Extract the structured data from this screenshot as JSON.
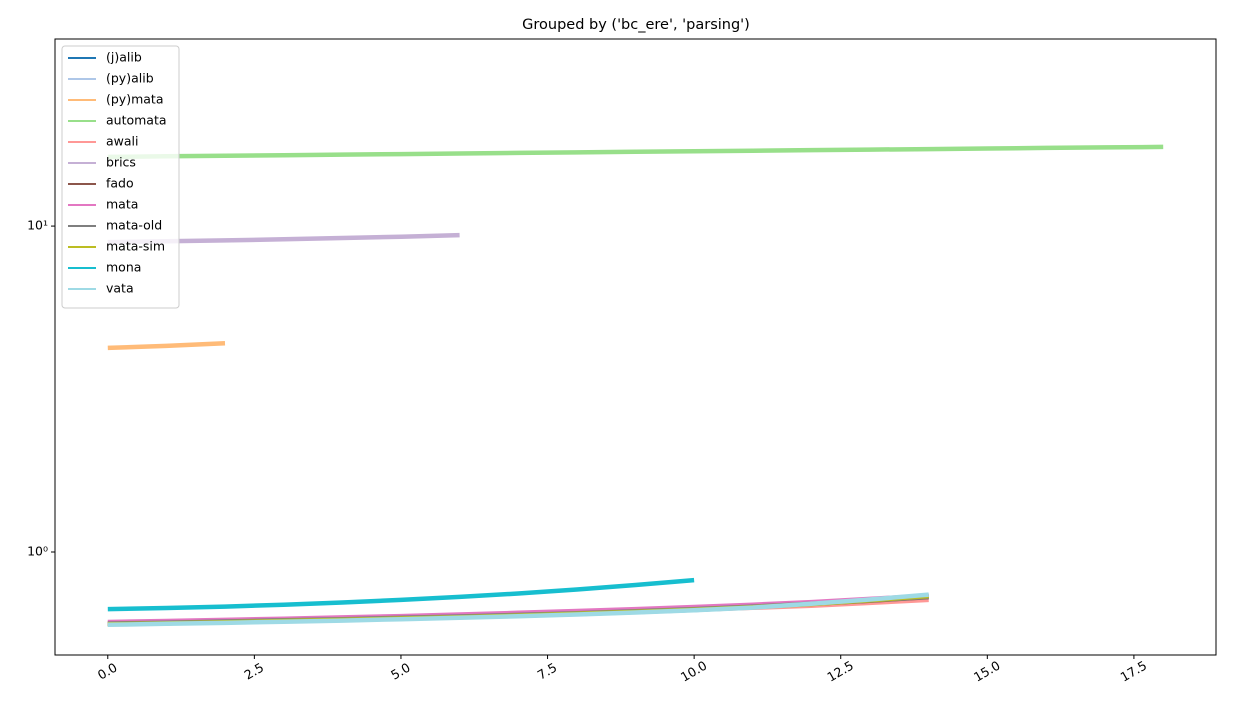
{
  "chart_data": {
    "type": "line",
    "title": "Grouped by ('bc_ere', 'parsing')",
    "xlim": [
      -0.9,
      18.9
    ],
    "ylim": [
      0.483,
      37.5
    ],
    "yscale": "log",
    "xticks": [
      {
        "value": 0,
        "label": "0.0"
      },
      2.5,
      {
        "value": 5,
        "label": "5.0"
      },
      7.5,
      {
        "value": 10,
        "label": "10.0"
      },
      12.5,
      {
        "value": 15,
        "label": "15.0"
      },
      17.5
    ],
    "yticks": [
      {
        "value": 1,
        "label": "10⁰"
      },
      {
        "value": 10,
        "label": "10¹"
      }
    ],
    "legend": "upper left",
    "series": [
      {
        "name": "(j)alib",
        "color": "#1f77b4",
        "x": [
          0,
          1,
          2,
          3,
          4,
          5,
          6,
          7,
          8,
          9,
          10,
          11,
          12,
          13,
          14
        ],
        "values": [
          0.6,
          0.604,
          0.608,
          0.613,
          0.618,
          0.624,
          0.63,
          0.637,
          0.645,
          0.654,
          0.664,
          0.676,
          0.692,
          0.712,
          0.735
        ]
      },
      {
        "name": "(py)alib",
        "color": "#aec7e8",
        "x": [
          0,
          1,
          2,
          3,
          4,
          5,
          6,
          7,
          8,
          9,
          10,
          11,
          12,
          13,
          14
        ],
        "values": [
          0.601,
          0.605,
          0.609,
          0.614,
          0.619,
          0.625,
          0.631,
          0.638,
          0.646,
          0.655,
          0.665,
          0.677,
          0.693,
          0.713,
          0.736
        ]
      },
      {
        "name": "(py)mata",
        "color": "#ffbb78",
        "x": [
          0,
          1,
          2
        ],
        "values": [
          4.23,
          4.29,
          4.37
        ]
      },
      {
        "name": "automata",
        "color": "#98df8a",
        "x": [
          0,
          1,
          2,
          3,
          4,
          5,
          6,
          7,
          8,
          9,
          10,
          11,
          12,
          13,
          14,
          15,
          16,
          17,
          18
        ],
        "values": [
          16.3,
          16.37,
          16.43,
          16.5,
          16.57,
          16.63,
          16.7,
          16.77,
          16.83,
          16.9,
          16.97,
          17.03,
          17.1,
          17.17,
          17.23,
          17.3,
          17.37,
          17.43,
          17.5
        ]
      },
      {
        "name": "awali",
        "color": "#ff9896",
        "x": [
          0,
          1,
          2,
          3,
          4,
          5,
          6,
          7,
          8,
          9,
          10,
          11,
          12,
          13,
          14
        ],
        "values": [
          0.605,
          0.609,
          0.613,
          0.618,
          0.623,
          0.629,
          0.635,
          0.642,
          0.649,
          0.657,
          0.665,
          0.674,
          0.684,
          0.698,
          0.713
        ]
      },
      {
        "name": "brics",
        "color": "#c5b0d5",
        "x": [
          0,
          1,
          2,
          3,
          4,
          5,
          6
        ],
        "values": [
          8.93,
          8.98,
          9.04,
          9.11,
          9.19,
          9.28,
          9.38
        ]
      },
      {
        "name": "fado",
        "color": "#8c564b",
        "x": [
          0,
          1,
          2,
          3,
          4,
          5,
          6,
          7,
          8,
          9,
          10,
          11,
          12,
          13,
          14
        ],
        "values": [
          0.602,
          0.606,
          0.611,
          0.616,
          0.621,
          0.627,
          0.633,
          0.64,
          0.648,
          0.657,
          0.667,
          0.679,
          0.693,
          0.709,
          0.727
        ]
      },
      {
        "name": "mata",
        "color": "#e377c2",
        "x": [
          0,
          1,
          2,
          3,
          4,
          5,
          6,
          7,
          8,
          9,
          10,
          11,
          12,
          13,
          14
        ],
        "values": [
          0.61,
          0.614,
          0.619,
          0.624,
          0.63,
          0.636,
          0.643,
          0.651,
          0.659,
          0.668,
          0.678,
          0.689,
          0.702,
          0.718,
          0.735
        ]
      },
      {
        "name": "mata-old",
        "color": "#7f7f7f",
        "x": [
          0,
          1,
          2,
          3,
          4,
          5,
          6,
          7,
          8,
          9,
          10,
          11,
          12,
          13,
          14
        ],
        "values": [
          0.603,
          0.607,
          0.612,
          0.617,
          0.622,
          0.628,
          0.634,
          0.641,
          0.649,
          0.658,
          0.668,
          0.68,
          0.694,
          0.71,
          0.728
        ]
      },
      {
        "name": "mata-sim",
        "color": "#bcbd22",
        "x": [
          0,
          1,
          2,
          3,
          4,
          5,
          6,
          7,
          8,
          9,
          10,
          11,
          12,
          13,
          14
        ],
        "values": [
          0.6,
          0.604,
          0.609,
          0.614,
          0.619,
          0.625,
          0.631,
          0.638,
          0.646,
          0.655,
          0.665,
          0.677,
          0.692,
          0.711,
          0.733
        ]
      },
      {
        "name": "mona",
        "color": "#17becf",
        "x": [
          0,
          1,
          2,
          3,
          4,
          5,
          6,
          7,
          8,
          9,
          10
        ],
        "values": [
          0.668,
          0.673,
          0.68,
          0.689,
          0.7,
          0.713,
          0.728,
          0.746,
          0.767,
          0.792,
          0.82
        ]
      },
      {
        "name": "vata",
        "color": "#9edae5",
        "x": [
          0,
          1,
          2,
          3,
          4,
          5,
          6,
          7,
          8,
          9,
          10,
          11,
          12,
          13,
          14
        ],
        "values": [
          0.598,
          0.602,
          0.606,
          0.611,
          0.616,
          0.622,
          0.628,
          0.635,
          0.643,
          0.652,
          0.663,
          0.675,
          0.694,
          0.715,
          0.74
        ]
      }
    ]
  }
}
